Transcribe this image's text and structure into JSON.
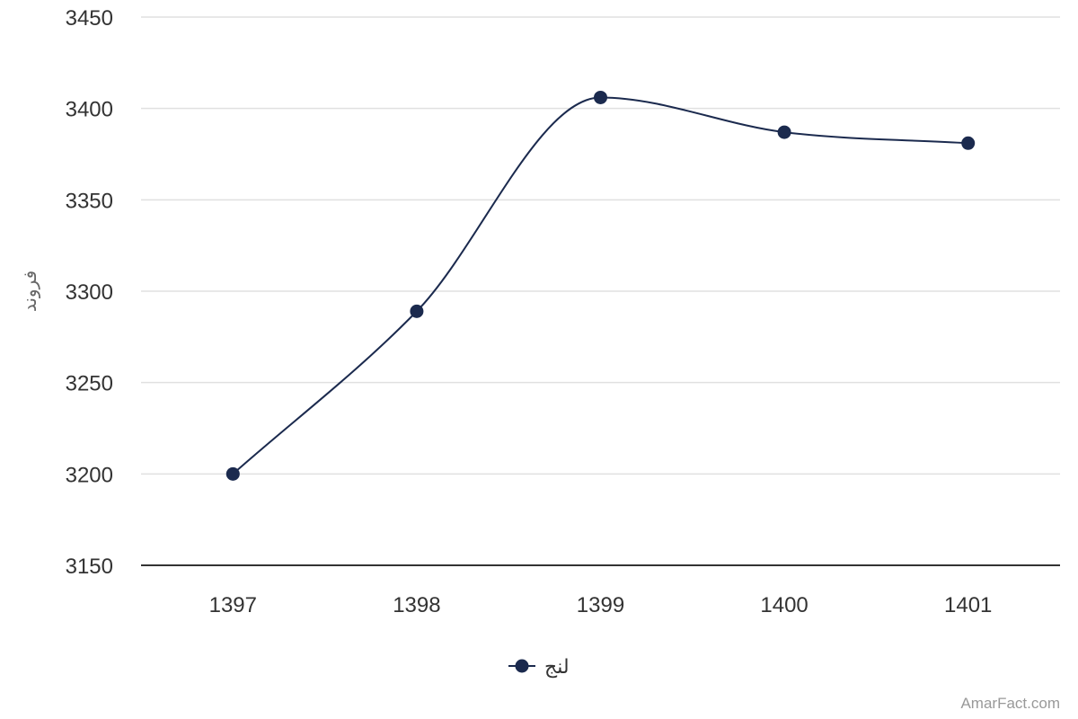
{
  "chart_data": {
    "type": "line",
    "x": [
      "1397",
      "1398",
      "1399",
      "1400",
      "1401"
    ],
    "series": [
      {
        "name": "لنج",
        "values": [
          3200,
          3289,
          3406,
          3387,
          3381
        ]
      }
    ],
    "ylabel": "فروند",
    "xlabel": "",
    "ylim": [
      3150,
      3450
    ],
    "yticks": [
      "3150",
      "3200",
      "3250",
      "3300",
      "3350",
      "3400",
      "3450"
    ],
    "grid": true,
    "legend": "bottom-center",
    "smooth": true,
    "colors": {
      "series": "#1b2a4e",
      "grid": "#e0e0e0",
      "axis": "#333333"
    }
  },
  "credit": "AmarFact.com"
}
